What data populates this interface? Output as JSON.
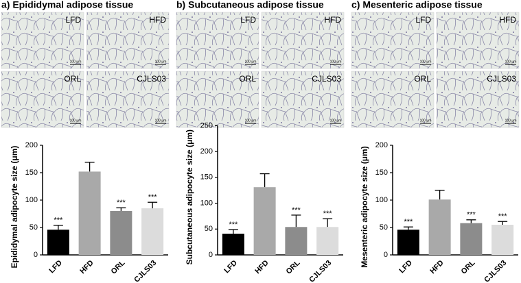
{
  "chart_data": [
    {
      "type": "bar",
      "ylabel": "Epididymal adipocyte size (μm)",
      "categories": [
        "LFD",
        "HFD",
        "ORL",
        "CJLS03"
      ],
      "values": [
        46,
        152,
        80,
        85
      ],
      "errors": [
        8,
        17,
        6,
        11
      ],
      "annotations": [
        "***",
        null,
        "***",
        "***"
      ],
      "colors": [
        "#000000",
        "#a9a9a9",
        "#8c8c8c",
        "#dcdcdc"
      ],
      "ylim": [
        0,
        200
      ],
      "yticks": [
        0,
        50,
        100,
        150,
        200
      ]
    },
    {
      "type": "bar",
      "ylabel": "Subcutaneous adipocyte size (μm)",
      "categories": [
        "LFD",
        "HFD",
        "ORL",
        "CJLS03"
      ],
      "values": [
        41,
        131,
        54,
        54
      ],
      "errors": [
        8,
        26,
        23,
        16
      ],
      "annotations": [
        "***",
        null,
        "***",
        "***"
      ],
      "colors": [
        "#000000",
        "#a9a9a9",
        "#8c8c8c",
        "#dcdcdc"
      ],
      "ylim": [
        0,
        250
      ],
      "yticks": [
        0,
        50,
        100,
        150,
        200,
        250
      ]
    },
    {
      "type": "bar",
      "ylabel": "Mesenteric adipocyte size (μm)",
      "categories": [
        "LFD",
        "HFD",
        "ORL",
        "CJLS03"
      ],
      "values": [
        46,
        101,
        58,
        55
      ],
      "errors": [
        5,
        17,
        6,
        6
      ],
      "annotations": [
        "***",
        null,
        "***",
        "***"
      ],
      "colors": [
        "#000000",
        "#a9a9a9",
        "#8c8c8c",
        "#dcdcdc"
      ],
      "ylim": [
        0,
        200
      ],
      "yticks": [
        0,
        50,
        100,
        150,
        200
      ]
    }
  ],
  "panels": [
    {
      "title": "a) Epididymal adipose tissue",
      "images": [
        {
          "label": "LFD",
          "scale": "100 μm"
        },
        {
          "label": "HFD",
          "scale": "100 μm"
        },
        {
          "label": "ORL",
          "scale": "100 μm"
        },
        {
          "label": "CJLS03",
          "scale": "100 μm"
        }
      ]
    },
    {
      "title": "b) Subcutaneous adipose tissue",
      "images": [
        {
          "label": "LFD",
          "scale": "100 μm"
        },
        {
          "label": "HFD",
          "scale": "100 μm"
        },
        {
          "label": "ORL",
          "scale": "100 μm"
        },
        {
          "label": "CJLS03",
          "scale": "100 μm"
        }
      ]
    },
    {
      "title": "c) Mesenteric adipose tissue",
      "images": [
        {
          "label": "LFD",
          "scale": "100 μm"
        },
        {
          "label": "HFD",
          "scale": "100 μm"
        },
        {
          "label": "ORL",
          "scale": "100 μm"
        },
        {
          "label": "CJLS03",
          "scale": "100 μm"
        }
      ]
    }
  ]
}
